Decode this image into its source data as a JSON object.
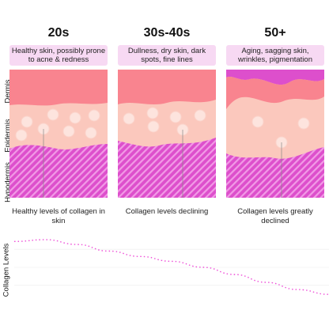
{
  "columns": [
    {
      "age": "20s",
      "description": "Healthy skin, possibly prone to acne & redness",
      "collagen_note": "Healthy levels of collagen in skin"
    },
    {
      "age": "30s-40s",
      "description": "Dullness, dry skin, dark spots, fine lines",
      "collagen_note": "Collagen levels declining"
    },
    {
      "age": "50+",
      "description": "Aging, sagging skin, wrinkles, pigmentation",
      "collagen_note": "Collagen levels greatly declined"
    }
  ],
  "layers": {
    "dermis": "Dermis",
    "epidermis": "Epidermis",
    "hypodermis": "Hypodermis"
  },
  "chart_data": {
    "type": "line",
    "ylabel": "Collagen Levels",
    "xlabel": "",
    "title": "",
    "series": [
      {
        "x": [
          0,
          0.1,
          0.2,
          0.3,
          0.4,
          0.5,
          0.6,
          0.7,
          0.8,
          0.9,
          1.0
        ],
        "y": [
          0.93,
          0.96,
          0.88,
          0.77,
          0.68,
          0.6,
          0.5,
          0.38,
          0.25,
          0.13,
          0.05
        ]
      }
    ]
  },
  "colors": {
    "dermis": "#f9848f",
    "epidermis": "#fbc8bd",
    "hypodermis": "#dd4fcc",
    "accent": "#ee4fd8",
    "description_bg": "#f7d9f3"
  }
}
